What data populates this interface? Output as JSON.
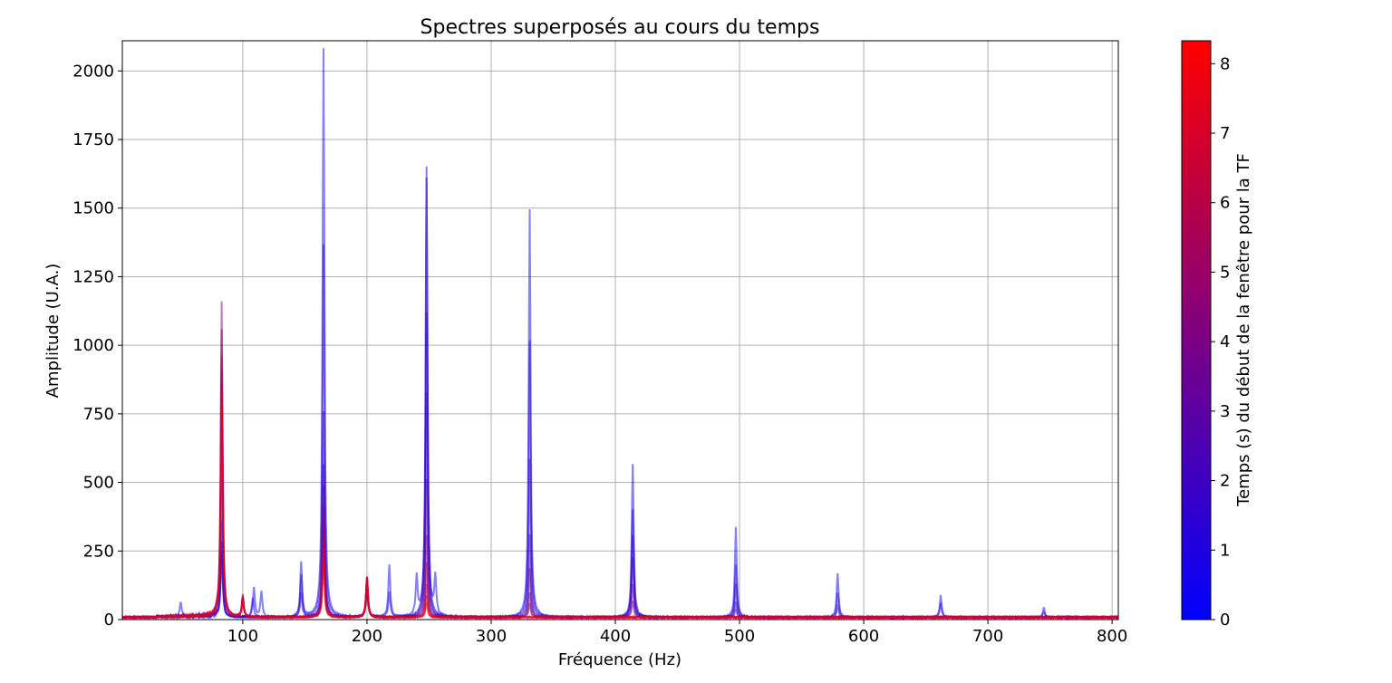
{
  "chart_data": {
    "type": "line",
    "title": "Spectres superposés au cours du temps",
    "xlabel": "Fréquence (Hz)",
    "ylabel": "Amplitude (U.A.)",
    "xlim": [
      3,
      805
    ],
    "ylim": [
      0,
      2110
    ],
    "grid": true,
    "xticks": [
      100,
      200,
      300,
      400,
      500,
      600,
      700,
      800
    ],
    "yticks": [
      0,
      250,
      500,
      750,
      1000,
      1250,
      1500,
      1750,
      2000
    ],
    "colorbar": {
      "label": "Temps (s) du début de la fenêtre pour la TF",
      "range": [
        0,
        8.33
      ],
      "ticks": [
        0,
        1,
        2,
        3,
        4,
        5,
        6,
        7,
        8
      ],
      "color_start": "#0000ff",
      "color_end": "#ff0000"
    },
    "series": [
      {
        "time": 0.5,
        "peaks": [
          [
            50,
            55
          ],
          [
            83,
            240
          ],
          [
            109,
            110
          ],
          [
            115,
            95
          ],
          [
            147,
            200
          ],
          [
            165,
            2075
          ],
          [
            200,
            110
          ],
          [
            218,
            190
          ],
          [
            240,
            140
          ],
          [
            248,
            1640
          ],
          [
            255,
            140
          ],
          [
            331,
            1485
          ],
          [
            414,
            560
          ],
          [
            497,
            330
          ],
          [
            579,
            160
          ],
          [
            662,
            80
          ],
          [
            745,
            35
          ]
        ]
      },
      {
        "time": 1.0,
        "peaks": [
          [
            83,
            280
          ],
          [
            108,
            70
          ],
          [
            147,
            150
          ],
          [
            165,
            1360
          ],
          [
            200,
            120
          ],
          [
            218,
            90
          ],
          [
            248,
            1600
          ],
          [
            331,
            1010
          ],
          [
            414,
            395
          ],
          [
            497,
            190
          ],
          [
            579,
            90
          ],
          [
            662,
            50
          ],
          [
            745,
            20
          ]
        ]
      },
      {
        "time": 1.5,
        "peaks": [
          [
            83,
            350
          ],
          [
            147,
            90
          ],
          [
            165,
            750
          ],
          [
            200,
            130
          ],
          [
            248,
            1110
          ],
          [
            331,
            575
          ],
          [
            414,
            300
          ],
          [
            497,
            120
          ],
          [
            579,
            40
          ]
        ]
      },
      {
        "time": 2.0,
        "peaks": [
          [
            83,
            500
          ],
          [
            165,
            560
          ],
          [
            200,
            135
          ],
          [
            248,
            820
          ],
          [
            331,
            300
          ],
          [
            414,
            220
          ],
          [
            497,
            60
          ]
        ]
      },
      {
        "time": 3.0,
        "peaks": [
          [
            83,
            900
          ],
          [
            165,
            480
          ],
          [
            200,
            140
          ],
          [
            248,
            500
          ],
          [
            331,
            180
          ],
          [
            414,
            120
          ],
          [
            497,
            30
          ]
        ]
      },
      {
        "time": 4.0,
        "peaks": [
          [
            83,
            1150
          ],
          [
            100,
            80
          ],
          [
            165,
            400
          ],
          [
            200,
            145
          ],
          [
            248,
            300
          ],
          [
            331,
            90
          ],
          [
            414,
            60
          ]
        ]
      },
      {
        "time": 5.0,
        "peaks": [
          [
            83,
            1050
          ],
          [
            100,
            75
          ],
          [
            165,
            350
          ],
          [
            200,
            145
          ],
          [
            248,
            200
          ],
          [
            331,
            50
          ]
        ]
      },
      {
        "time": 6.0,
        "peaks": [
          [
            83,
            950
          ],
          [
            100,
            70
          ],
          [
            165,
            300
          ],
          [
            200,
            150
          ],
          [
            248,
            120
          ]
        ]
      },
      {
        "time": 7.0,
        "peaks": [
          [
            83,
            850
          ],
          [
            100,
            70
          ],
          [
            165,
            250
          ],
          [
            200,
            150
          ],
          [
            248,
            80
          ]
        ]
      },
      {
        "time": 8.0,
        "peaks": [
          [
            83,
            780
          ],
          [
            100,
            65
          ],
          [
            165,
            210
          ],
          [
            200,
            150
          ],
          [
            248,
            50
          ]
        ]
      }
    ]
  }
}
